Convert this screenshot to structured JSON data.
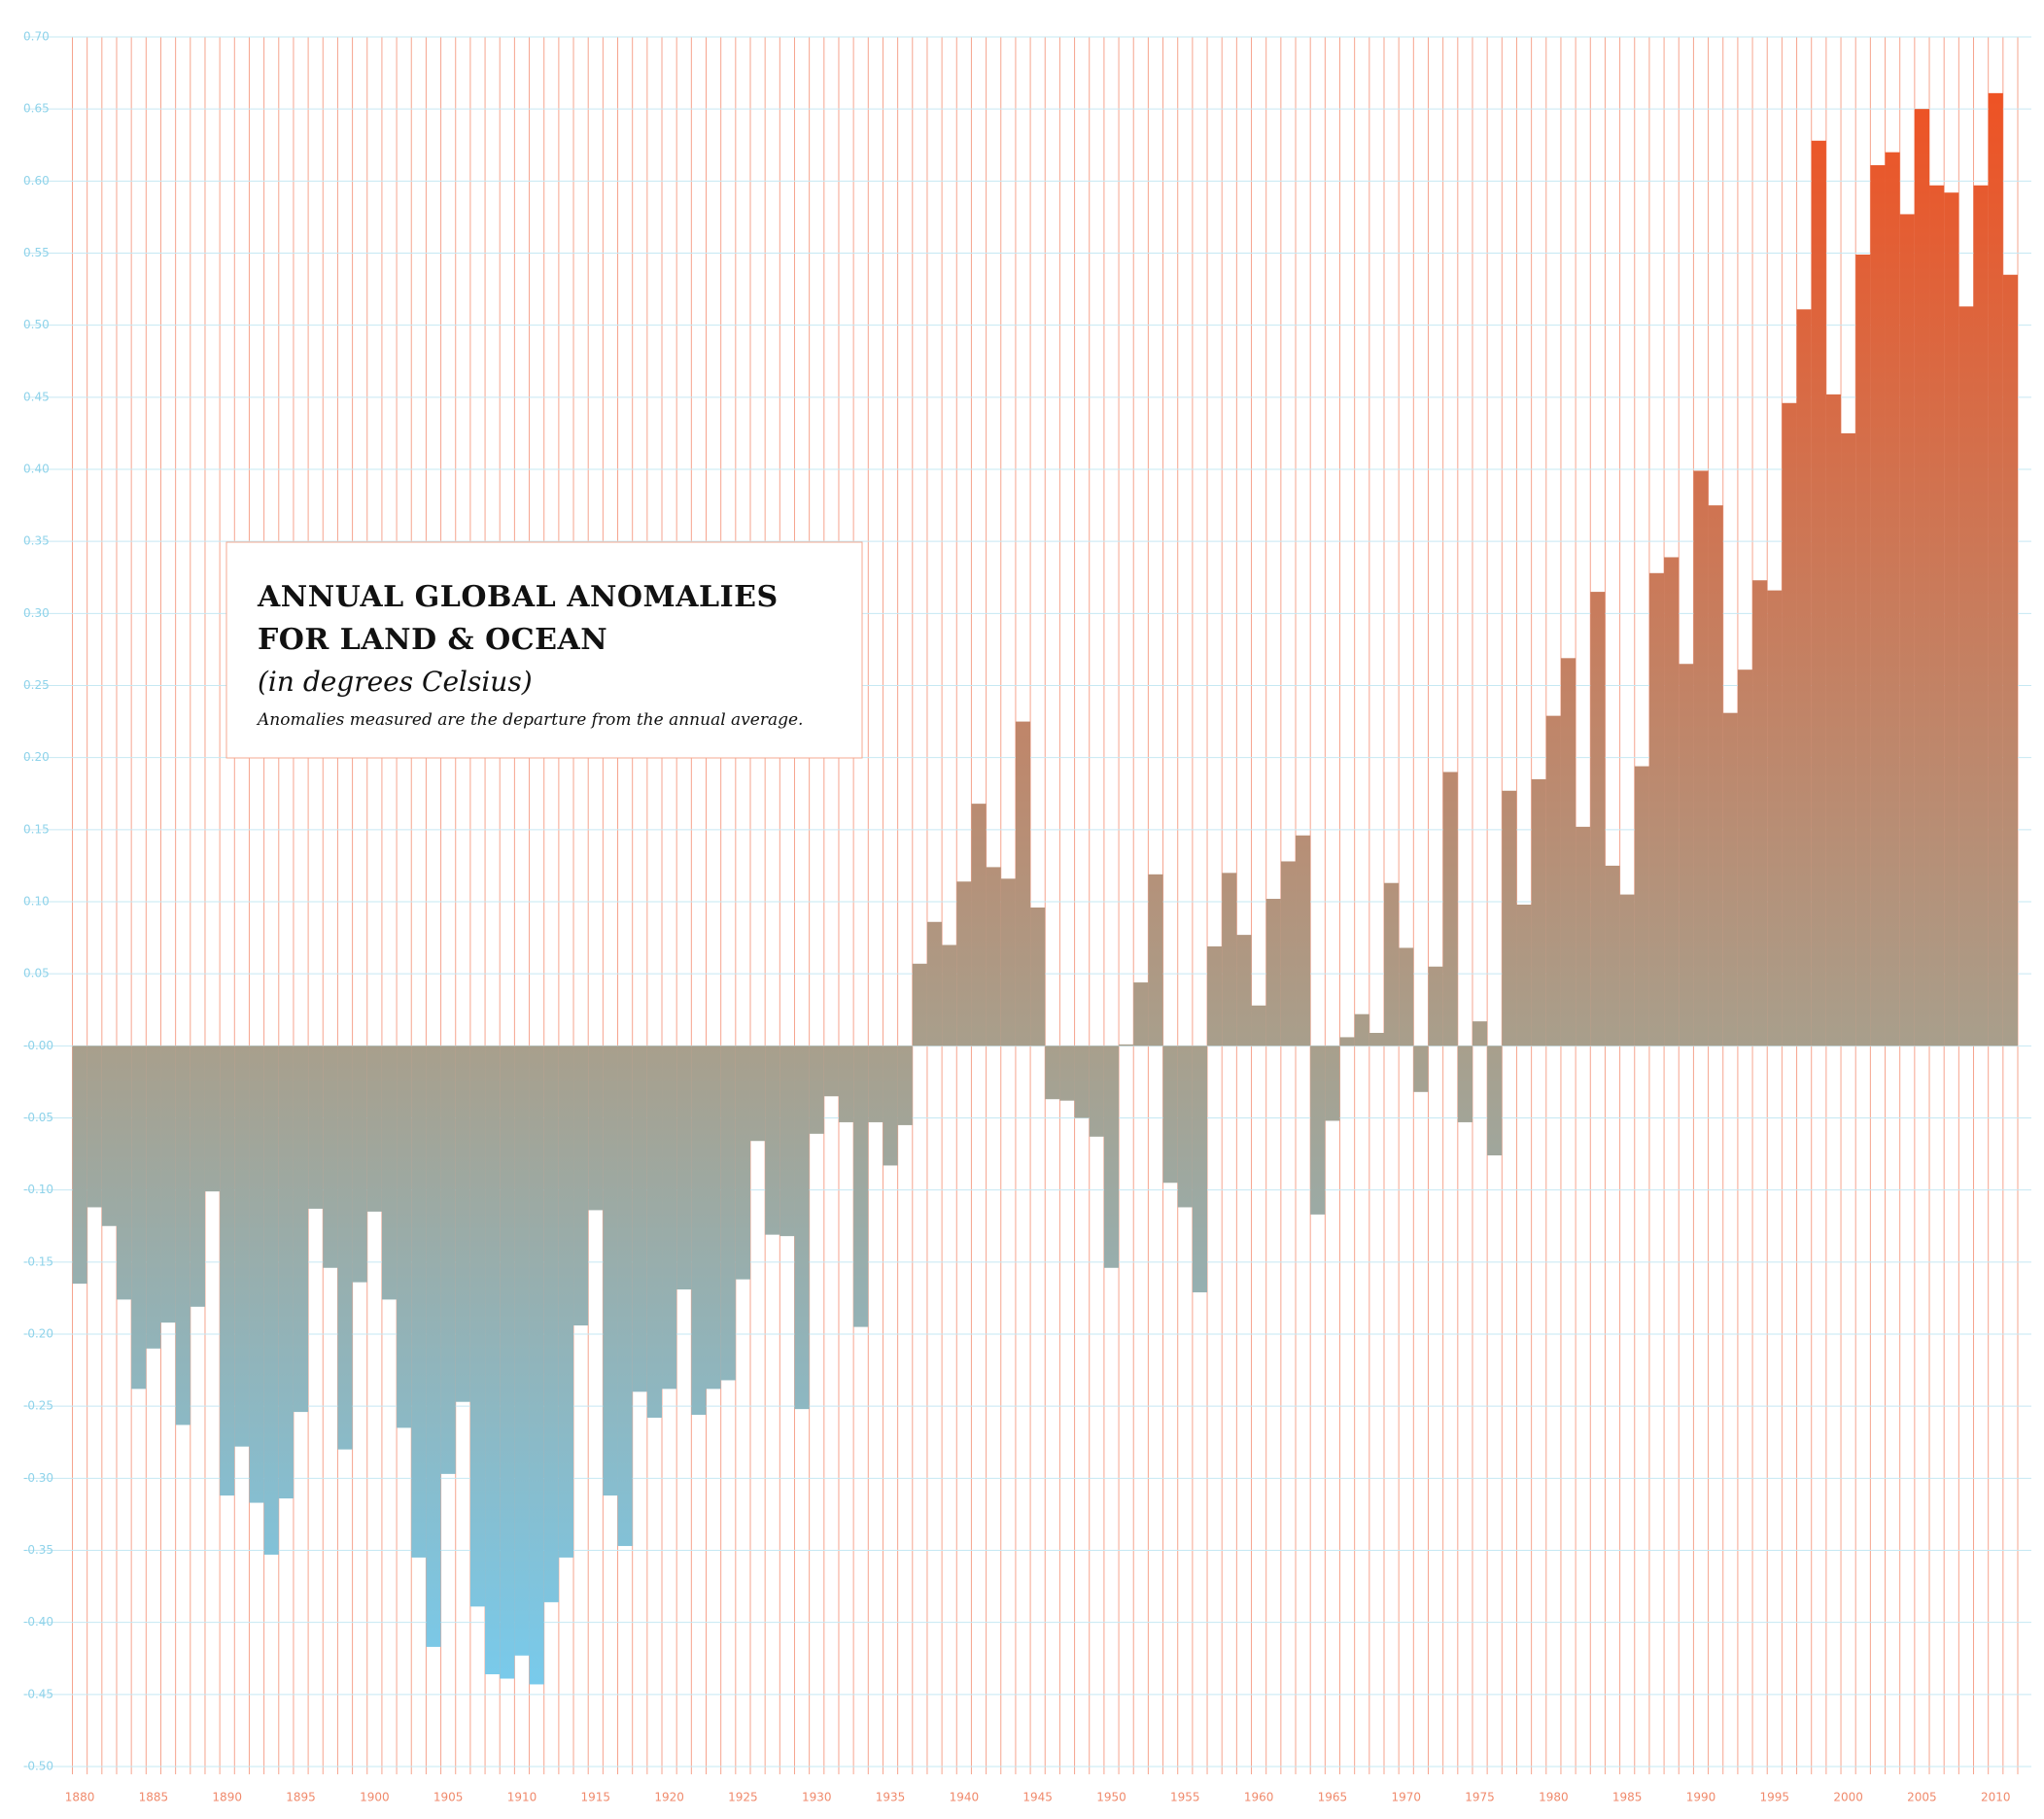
{
  "chart_data": {
    "type": "bar",
    "title": [
      "ANNUAL GLOBAL ANOMALIES",
      "FOR LAND & OCEAN"
    ],
    "subtitle": "(in degrees Celsius)",
    "note": "Anomalies measured are the departure from the annual average.",
    "categories": [
      1880,
      null,
      null,
      null,
      null,
      1885,
      null,
      null,
      null,
      null,
      1890,
      null,
      null,
      null,
      null,
      1895,
      null,
      null,
      null,
      null,
      1900,
      null,
      null,
      null,
      null,
      1905,
      null,
      null,
      null,
      null,
      1910,
      null,
      null,
      null,
      null,
      1915,
      null,
      null,
      null,
      null,
      1920,
      null,
      null,
      null,
      null,
      1925,
      null,
      null,
      null,
      null,
      1930,
      null,
      null,
      null,
      null,
      1935,
      null,
      null,
      null,
      null,
      1940,
      null,
      null,
      null,
      null,
      1945,
      null,
      null,
      null,
      null,
      1950,
      null,
      null,
      null,
      null,
      1955,
      null,
      null,
      null,
      null,
      1960,
      null,
      null,
      null,
      null,
      1965,
      null,
      null,
      null,
      null,
      1970,
      null,
      null,
      null,
      null,
      1975,
      null,
      null,
      null,
      null,
      1980,
      null,
      null,
      null,
      null,
      1985,
      null,
      null,
      null,
      null,
      1990,
      null,
      null,
      null,
      null,
      1995,
      null,
      null,
      null,
      null,
      2000,
      null,
      null,
      null,
      null,
      2005,
      null,
      null,
      null,
      null,
      2010,
      null
    ],
    "values": [
      -0.165,
      -0.112,
      -0.125,
      -0.176,
      -0.238,
      -0.21,
      -0.192,
      -0.263,
      -0.181,
      -0.101,
      -0.312,
      -0.278,
      -0.317,
      -0.353,
      -0.314,
      -0.254,
      -0.113,
      -0.154,
      -0.28,
      -0.164,
      -0.115,
      -0.176,
      -0.265,
      -0.355,
      -0.417,
      -0.297,
      -0.247,
      -0.389,
      -0.436,
      -0.439,
      -0.423,
      -0.443,
      -0.386,
      -0.355,
      -0.194,
      -0.114,
      -0.312,
      -0.347,
      -0.24,
      -0.258,
      -0.238,
      -0.169,
      -0.256,
      -0.238,
      -0.232,
      -0.162,
      -0.066,
      -0.131,
      -0.132,
      -0.252,
      -0.061,
      -0.035,
      -0.053,
      -0.195,
      -0.053,
      -0.083,
      -0.055,
      0.057,
      0.086,
      0.07,
      0.114,
      0.168,
      0.124,
      0.116,
      0.225,
      0.096,
      -0.037,
      -0.038,
      -0.05,
      -0.063,
      -0.154,
      0.001,
      0.044,
      0.119,
      -0.095,
      -0.112,
      -0.171,
      0.069,
      0.12,
      0.077,
      0.028,
      0.102,
      0.128,
      0.146,
      -0.117,
      -0.052,
      0.006,
      0.022,
      0.009,
      0.113,
      0.068,
      -0.032,
      0.055,
      0.19,
      -0.053,
      0.017,
      -0.076,
      0.177,
      0.098,
      0.185,
      0.229,
      0.269,
      0.152,
      0.315,
      0.125,
      0.105,
      0.194,
      0.328,
      0.339,
      0.265,
      0.399,
      0.375,
      0.231,
      0.261,
      0.323,
      0.316,
      0.446,
      0.511,
      0.628,
      0.452,
      0.425,
      0.549,
      0.611,
      0.62,
      0.577,
      0.65,
      0.597,
      0.592,
      0.513,
      0.597,
      0.661,
      0.535
    ],
    "gradient": [
      "#f24e1e",
      "#a89f8c",
      "#72d0f8"
    ],
    "ylim": [
      -0.5,
      0.7
    ],
    "yticks": [
      {
        "value": 0.7,
        "label": "0.70"
      },
      {
        "value": 0.65,
        "label": "0.65"
      },
      {
        "value": 0.6,
        "label": "0.60"
      },
      {
        "value": 0.55,
        "label": "0.55"
      },
      {
        "value": 0.5,
        "label": "0.50"
      },
      {
        "value": 0.45,
        "label": "0.45"
      },
      {
        "value": 0.4,
        "label": "0.40"
      },
      {
        "value": 0.35,
        "label": "0.35"
      },
      {
        "value": 0.3,
        "label": "0.30"
      },
      {
        "value": 0.25,
        "label": "0.25"
      },
      {
        "value": 0.2,
        "label": "0.20"
      },
      {
        "value": 0.15,
        "label": "0.15"
      },
      {
        "value": 0.1,
        "label": "0.10"
      },
      {
        "value": 0.05,
        "label": "0.05"
      },
      {
        "value": 0,
        "label": "-0.00"
      },
      {
        "value": -0.05,
        "label": "-0.05"
      },
      {
        "value": -0.1,
        "label": "-0.10"
      },
      {
        "value": -0.15,
        "label": "-0.15"
      },
      {
        "value": -0.2,
        "label": "-0.20"
      },
      {
        "value": -0.25,
        "label": "-0.25"
      },
      {
        "value": -0.3,
        "label": "-0.30"
      },
      {
        "value": -0.35,
        "label": "-0.35"
      },
      {
        "value": -0.4,
        "label": "-0.40"
      },
      {
        "value": -0.45,
        "label": "-0.45"
      },
      {
        "value": -0.5,
        "label": "-0.50"
      }
    ],
    "grid": true
  }
}
